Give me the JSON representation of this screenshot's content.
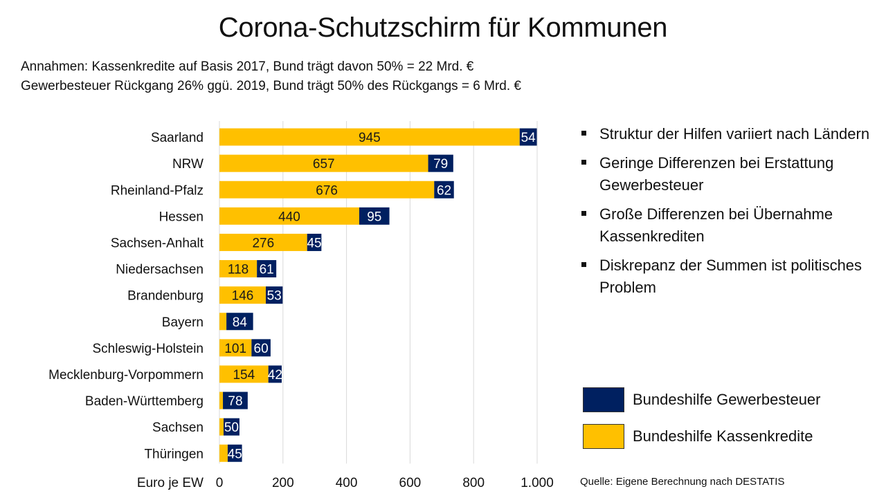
{
  "slide": {
    "title": "Corona-Schutzschirm für Kommunen",
    "subtitle_lines": [
      "Annahmen: Kassenkredite auf Basis 2017, Bund trägt davon 50% = 22 Mrd. €",
      "Gewerbesteuer Rückgang 26% ggü. 2019, Bund trägt 50% des Rückgangs = 6 Mrd. €"
    ],
    "bullets": [
      "Struktur der Hilfen variiert nach Ländern",
      "Geringe Differenzen bei Erstattung Gewerbesteuer",
      "Große Differenzen bei Übernahme Kassenkrediten",
      "Diskrepanz der Summen ist politisches Problem"
    ],
    "bullet_icon": "square-bullet-icon",
    "source": "Quelle: Eigene Berechnung nach DESTATIS"
  },
  "colors": {
    "kassenkredite": "#FFC000",
    "gewerbesteuer": "#002060",
    "gridline": "#d9d9d9"
  },
  "chart_data": {
    "type": "bar",
    "orientation": "horizontal",
    "stacked": true,
    "title": "Corona-Schutzschirm für Kommunen",
    "xlabel": "Euro je EW",
    "ylabel": "",
    "xlim": [
      0,
      1000
    ],
    "xticks": [
      0,
      200,
      400,
      600,
      800,
      1000
    ],
    "xtick_labels": [
      "0",
      "200",
      "400",
      "600",
      "800",
      "1.000"
    ],
    "grid": true,
    "legend_position": "right",
    "categories": [
      "Saarland",
      "NRW",
      "Rheinland-Pfalz",
      "Hessen",
      "Sachsen-Anhalt",
      "Niedersachsen",
      "Brandenburg",
      "Bayern",
      "Schleswig-Holstein",
      "Mecklenburg-Vorpommern",
      "Baden-Württemberg",
      "Sachsen",
      "Thüringen"
    ],
    "series": [
      {
        "name": "Bundeshilfe Kassenkredite",
        "color": "#FFC000",
        "values": [
          945,
          657,
          676,
          440,
          276,
          118,
          146,
          22,
          101,
          154,
          11,
          13,
          26
        ],
        "labels": [
          "945",
          "657",
          "676",
          "440",
          "276",
          "118",
          "146",
          "",
          "101",
          "154",
          "",
          "",
          ""
        ]
      },
      {
        "name": "Bundeshilfe Gewerbesteuer",
        "color": "#002060",
        "values": [
          54,
          79,
          62,
          95,
          45,
          61,
          53,
          84,
          60,
          42,
          78,
          50,
          45
        ],
        "labels": [
          "54",
          "79",
          "62",
          "95",
          "45",
          "61",
          "53",
          "84",
          "60",
          "42",
          "78",
          "50",
          "45"
        ]
      }
    ]
  },
  "legend": [
    {
      "label": "Bundeshilfe Gewerbesteuer",
      "color": "#002060"
    },
    {
      "label": "Bundeshilfe Kassenkredite",
      "color": "#FFC000"
    }
  ]
}
